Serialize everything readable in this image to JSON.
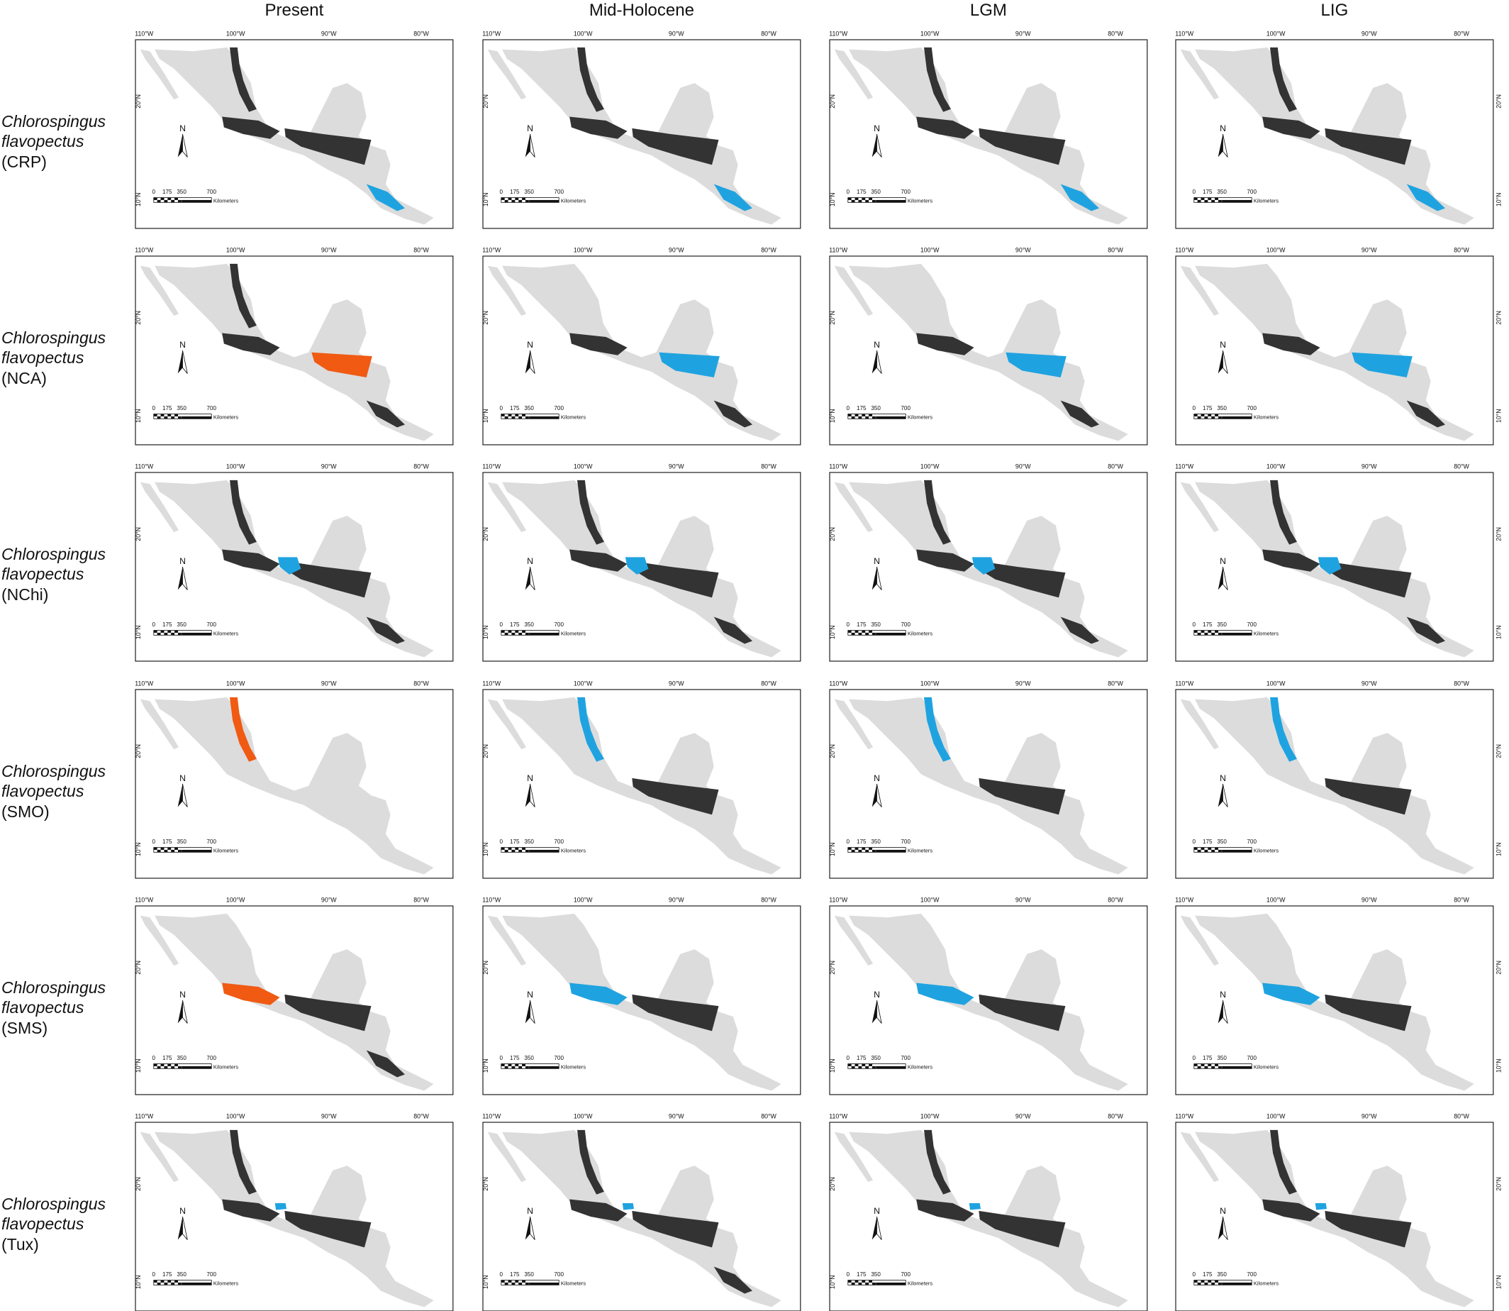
{
  "column_titles": [
    "Present",
    "Mid-Holocene",
    "LGM",
    "LIG"
  ],
  "rows": [
    {
      "species": "Chlorospingus",
      "epithet": "flavopectus",
      "population": "(CRP)"
    },
    {
      "species": "Chlorospingus",
      "epithet": "flavopectus",
      "population": "(NCA)"
    },
    {
      "species": "Chlorospingus",
      "epithet": "flavopectus",
      "population": "(NChi)"
    },
    {
      "species": "Chlorospingus",
      "epithet": "flavopectus",
      "population": "(SMO)"
    },
    {
      "species": "Chlorospingus",
      "epithet": "flavopectus",
      "population": "(SMS)"
    },
    {
      "species": "Chlorospingus",
      "epithet": "flavopectus",
      "population": "(Tux)"
    }
  ],
  "map_labels": {
    "longitudes": [
      "110°W",
      "100°W",
      "90°W",
      "80°W"
    ],
    "latitudes": [
      "20°N",
      "10°N"
    ],
    "scale_ticks": [
      0,
      175,
      350,
      700
    ],
    "scale_unit": "Kilometers",
    "north": "N"
  }
}
